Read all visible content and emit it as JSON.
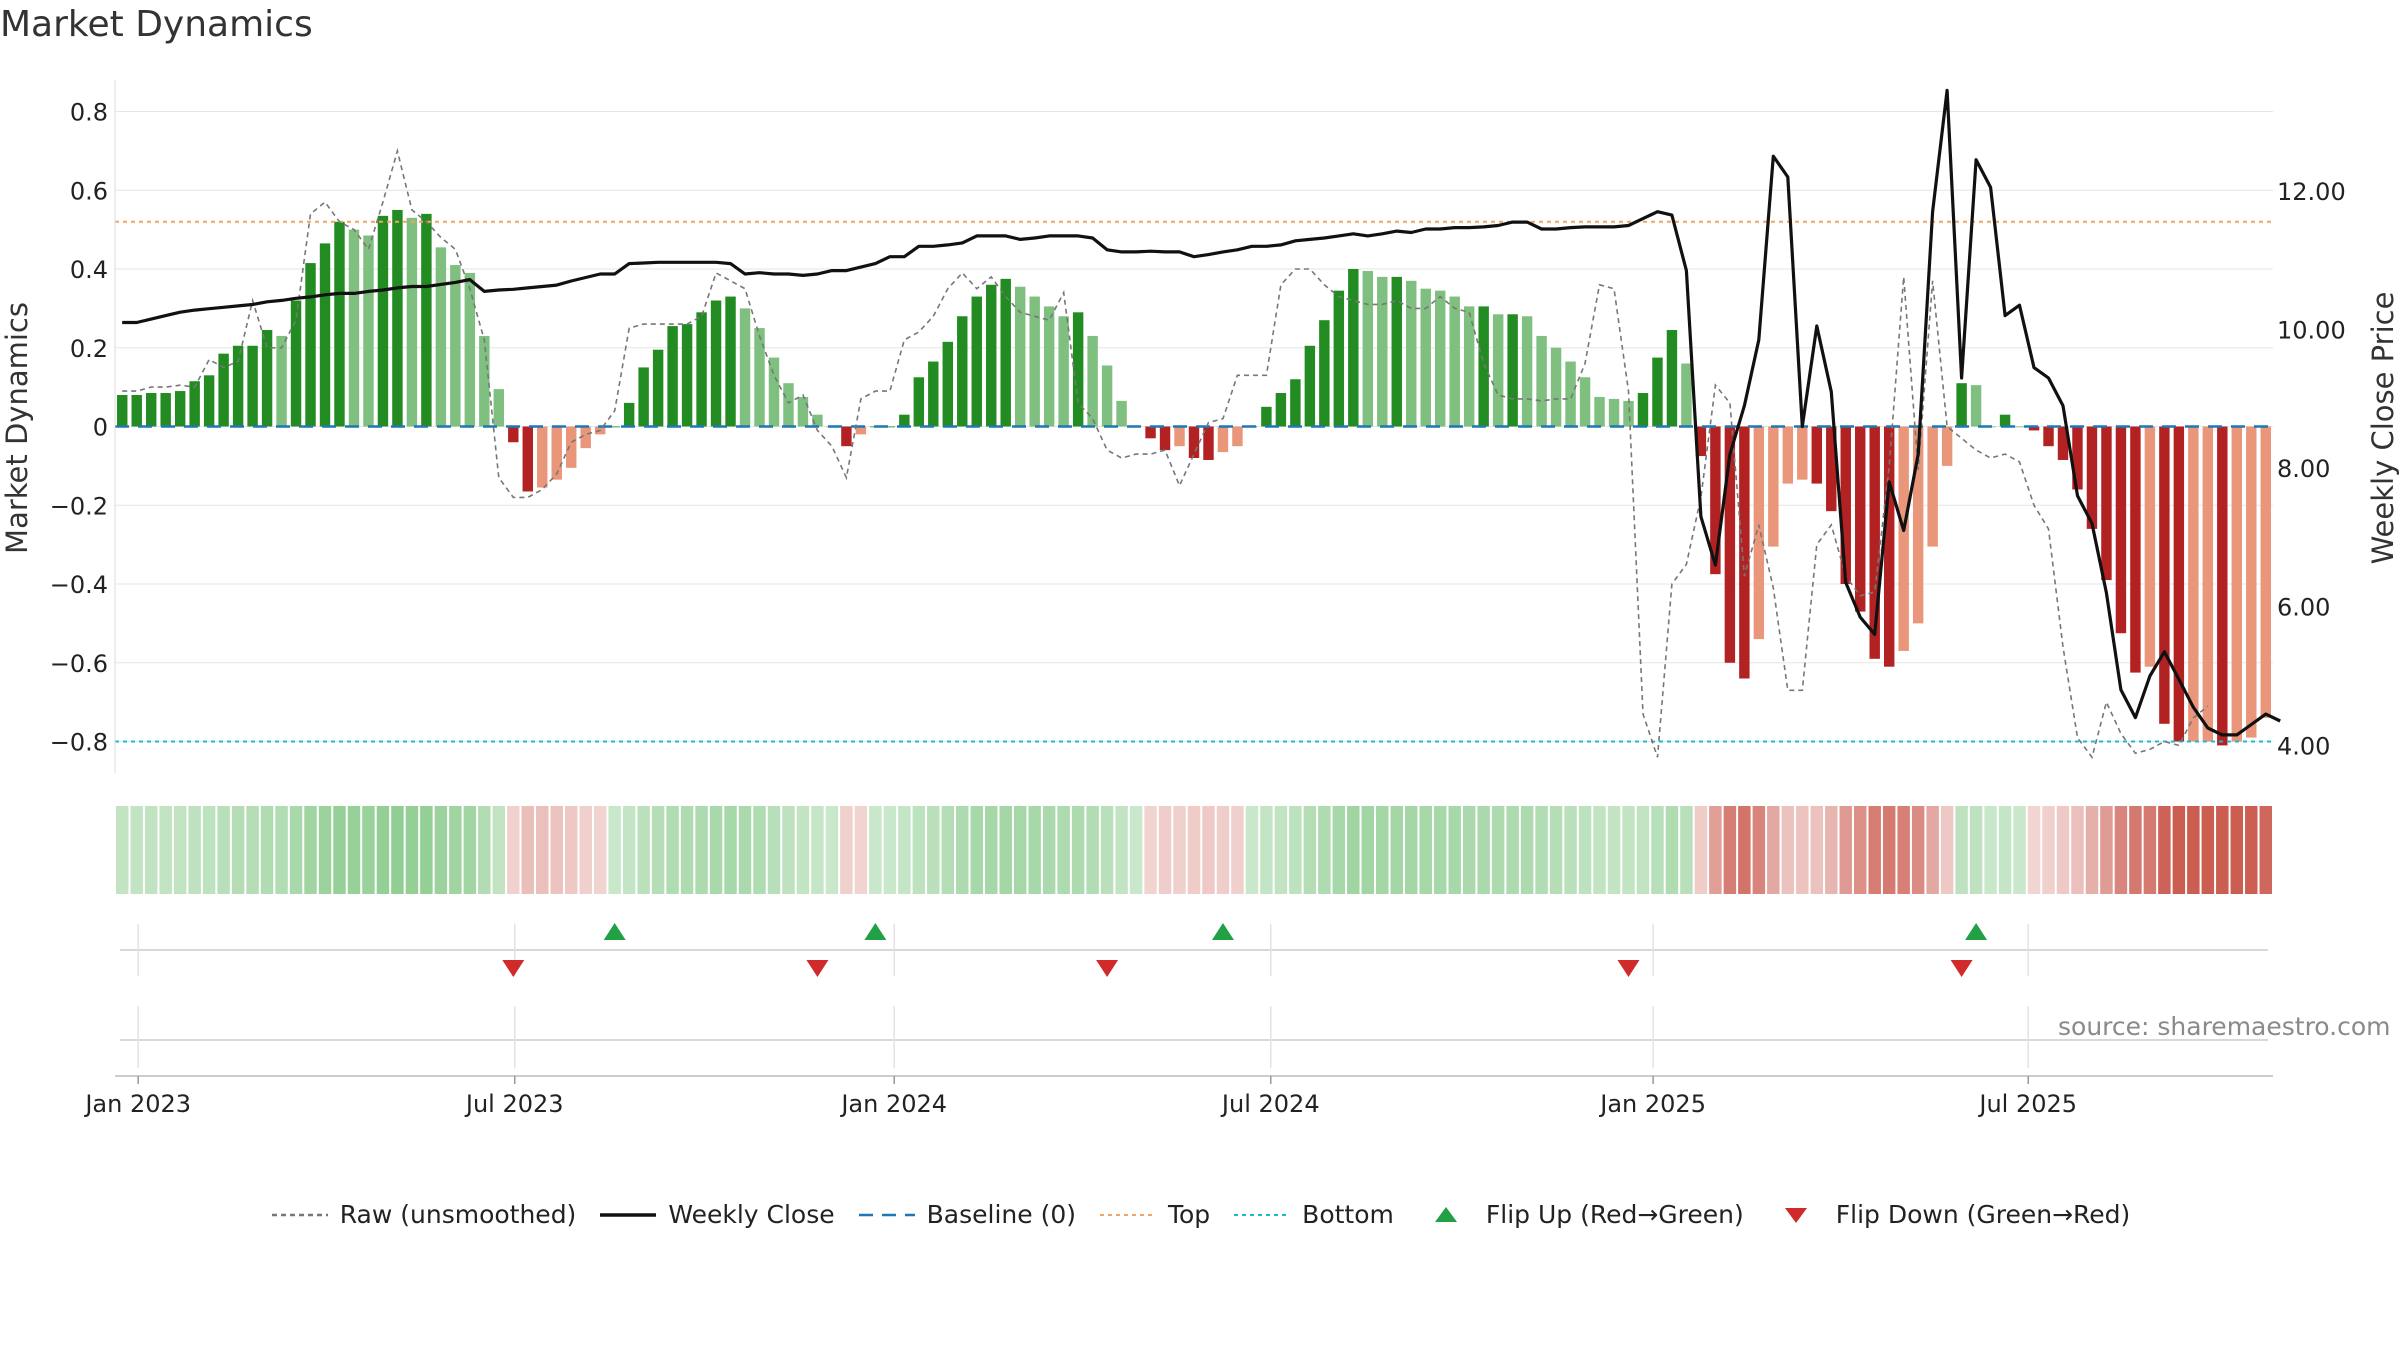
{
  "title": "Market Dynamics",
  "source": "source: sharemaestro.com",
  "chart_data": {
    "type": "bar",
    "ylabel_left": "Market Dynamics",
    "ylabel_right": "Weekly Close Price",
    "ylim_left": [
      -0.88,
      0.88
    ],
    "ylim_right": [
      3.6,
      13.6
    ],
    "yticks_left": [
      0.8,
      0.6,
      0.4,
      0.2,
      0,
      -0.2,
      -0.4,
      -0.6,
      -0.8
    ],
    "yticks_left_labels": [
      "0.8",
      "0.6",
      "0.4",
      "0.2",
      "0",
      "−0.2",
      "−0.4",
      "−0.6",
      "−0.8"
    ],
    "yticks_right": [
      12,
      10,
      8,
      6,
      4
    ],
    "yticks_right_labels": [
      "12.00",
      "10.00",
      "8.00",
      "6.00",
      "4.00"
    ],
    "xticks": [
      {
        "label": "Jan 2023",
        "week": 1.6
      },
      {
        "label": "Jul 2023",
        "week": 27.6
      },
      {
        "label": "Jan 2024",
        "week": 53.8
      },
      {
        "label": "Jul 2024",
        "week": 79.8
      },
      {
        "label": "Jan 2025",
        "week": 106.2
      },
      {
        "label": "Jul 2025",
        "week": 132.1
      }
    ],
    "top_level": 0.52,
    "bottom_level": -0.8,
    "baseline": 0,
    "grid": true,
    "legend_position": "bottom-center",
    "series": [
      {
        "name": "Market Dynamics",
        "values": [
          0.08,
          0.08,
          0.085,
          0.085,
          0.09,
          0.115,
          0.13,
          0.185,
          0.205,
          0.205,
          0.245,
          0.23,
          0.32,
          0.415,
          0.465,
          0.52,
          0.5,
          0.485,
          0.535,
          0.55,
          0.53,
          0.54,
          0.455,
          0.41,
          0.39,
          0.23,
          0.095,
          -0.04,
          -0.165,
          -0.155,
          -0.135,
          -0.105,
          -0.055,
          -0.02,
          0.0,
          0.06,
          0.15,
          0.195,
          0.255,
          0.26,
          0.29,
          0.32,
          0.33,
          0.3,
          0.25,
          0.175,
          0.11,
          0.075,
          0.03,
          0.0,
          -0.05,
          -0.02,
          0.0,
          0.0,
          0.03,
          0.125,
          0.165,
          0.215,
          0.28,
          0.33,
          0.36,
          0.375,
          0.355,
          0.33,
          0.305,
          0.28,
          0.29,
          0.23,
          0.155,
          0.065,
          0.0,
          -0.03,
          -0.06,
          -0.05,
          -0.08,
          -0.085,
          -0.065,
          -0.05,
          0.0,
          0.05,
          0.085,
          0.12,
          0.205,
          0.27,
          0.345,
          0.4,
          0.395,
          0.38,
          0.38,
          0.37,
          0.35,
          0.345,
          0.33,
          0.305,
          0.305,
          0.285,
          0.285,
          0.28,
          0.23,
          0.2,
          0.165,
          0.125,
          0.075,
          0.07,
          0.065,
          0.085,
          0.175,
          0.245,
          0.16,
          -0.075,
          -0.375,
          -0.6,
          -0.64,
          -0.54,
          -0.305,
          -0.145,
          -0.135,
          -0.145,
          -0.215,
          -0.4,
          -0.47,
          -0.59,
          -0.61,
          -0.57,
          -0.5,
          -0.305,
          -0.1,
          0.11,
          0.105,
          0.0,
          0.03,
          0.0,
          -0.01,
          -0.05,
          -0.085,
          -0.16,
          -0.26,
          -0.39,
          -0.525,
          -0.625,
          -0.61,
          -0.755,
          -0.8,
          -0.8,
          -0.8,
          -0.81,
          -0.8,
          -0.79,
          -0.74
        ]
      },
      {
        "name": "Raw (unsmoothed)",
        "values": [
          0.09,
          0.09,
          0.1,
          0.1,
          0.105,
          0.1,
          0.17,
          0.15,
          0.165,
          0.32,
          0.2,
          0.2,
          0.27,
          0.54,
          0.57,
          0.52,
          0.5,
          0.45,
          0.57,
          0.7,
          0.55,
          0.52,
          0.48,
          0.45,
          0.35,
          0.22,
          -0.13,
          -0.18,
          -0.18,
          -0.16,
          -0.12,
          -0.04,
          -0.02,
          -0.01,
          0.04,
          0.25,
          0.26,
          0.26,
          0.26,
          0.26,
          0.28,
          0.39,
          0.37,
          0.35,
          0.23,
          0.13,
          0.06,
          0.08,
          -0.01,
          -0.05,
          -0.13,
          0.07,
          0.09,
          0.09,
          0.22,
          0.24,
          0.28,
          0.35,
          0.39,
          0.35,
          0.38,
          0.33,
          0.29,
          0.28,
          0.27,
          0.34,
          0.06,
          0.02,
          -0.06,
          -0.08,
          -0.07,
          -0.07,
          -0.06,
          -0.15,
          -0.07,
          0.01,
          0.02,
          0.13,
          0.13,
          0.13,
          0.36,
          0.4,
          0.4,
          0.36,
          0.33,
          0.32,
          0.31,
          0.31,
          0.32,
          0.3,
          0.3,
          0.33,
          0.3,
          0.29,
          0.16,
          0.08,
          0.07,
          0.07,
          0.065,
          0.07,
          0.07,
          0.16,
          0.36,
          0.35,
          0.09,
          -0.73,
          -0.84,
          -0.4,
          -0.35,
          -0.18,
          0.105,
          0.06,
          -0.38,
          -0.25,
          -0.41,
          -0.67,
          -0.67,
          -0.3,
          -0.25,
          -0.38,
          -0.43,
          -0.42,
          -0.1,
          0.38,
          -0.11,
          0.37,
          0.0,
          -0.03,
          -0.06,
          -0.08,
          -0.07,
          -0.09,
          -0.2,
          -0.26,
          -0.56,
          -0.79,
          -0.84,
          -0.7,
          -0.78,
          -0.83,
          -0.82,
          -0.8,
          -0.81,
          -0.74,
          -0.71
        ]
      },
      {
        "name": "Weekly Close",
        "values": [
          10.1,
          10.1,
          10.15,
          10.2,
          10.25,
          10.28,
          10.3,
          10.32,
          10.34,
          10.36,
          10.4,
          10.42,
          10.45,
          10.47,
          10.5,
          10.52,
          10.52,
          10.55,
          10.57,
          10.6,
          10.62,
          10.62,
          10.65,
          10.68,
          10.72,
          10.55,
          10.57,
          10.58,
          10.6,
          10.62,
          10.64,
          10.7,
          10.75,
          10.8,
          10.8,
          10.95,
          10.96,
          10.97,
          10.97,
          10.97,
          10.97,
          10.97,
          10.95,
          10.8,
          10.82,
          10.8,
          10.8,
          10.78,
          10.8,
          10.85,
          10.85,
          10.9,
          10.95,
          11.05,
          11.05,
          11.2,
          11.2,
          11.22,
          11.25,
          11.35,
          11.35,
          11.35,
          11.3,
          11.32,
          11.35,
          11.35,
          11.35,
          11.32,
          11.15,
          11.12,
          11.12,
          11.13,
          11.12,
          11.12,
          11.05,
          11.08,
          11.12,
          11.15,
          11.2,
          11.2,
          11.22,
          11.28,
          11.3,
          11.32,
          11.35,
          11.38,
          11.35,
          11.38,
          11.42,
          11.4,
          11.45,
          11.45,
          11.47,
          11.47,
          11.48,
          11.5,
          11.55,
          11.55,
          11.45,
          11.45,
          11.47,
          11.48,
          11.48,
          11.48,
          11.5,
          11.6,
          11.7,
          11.65,
          10.85,
          7.3,
          6.6,
          8.2,
          8.9,
          9.85,
          12.5,
          12.2,
          8.6,
          10.05,
          9.1,
          6.35,
          5.85,
          5.6,
          7.8,
          7.1,
          8.2,
          11.7,
          13.45,
          9.3,
          12.45,
          12.05,
          10.2,
          10.35,
          9.45,
          9.3,
          8.9,
          7.6,
          7.2,
          6.2,
          4.8,
          4.4,
          5.0,
          5.35,
          4.95,
          4.55,
          4.25,
          4.15,
          4.15,
          4.3,
          4.45,
          4.35
        ]
      }
    ],
    "flip_up_weeks": [
      34,
      52,
      76,
      128
    ],
    "flip_down_weeks": [
      27,
      48,
      68,
      104,
      127
    ],
    "legend": [
      {
        "label": "Raw (unsmoothed)",
        "style": "dashed",
        "color": "#777777"
      },
      {
        "label": "Weekly Close",
        "style": "solid",
        "color": "#111111"
      },
      {
        "label": "Baseline (0)",
        "style": "dashed",
        "color": "#1f77b4"
      },
      {
        "label": "Top",
        "style": "dotted",
        "color": "#f4a460"
      },
      {
        "label": "Bottom",
        "style": "dotted",
        "color": "#17becf"
      },
      {
        "label": "Flip Up (Red→Green)",
        "style": "triangle-up",
        "color": "#22a046"
      },
      {
        "label": "Flip Down (Green→Red)",
        "style": "triangle-down",
        "color": "#d12a2a"
      }
    ]
  },
  "colors": {
    "green_strong": "#228b22",
    "green_light": "#7fbf7f",
    "red_strong": "#b22222",
    "red_light": "#e9967a",
    "grid": "#e6e6e6"
  }
}
